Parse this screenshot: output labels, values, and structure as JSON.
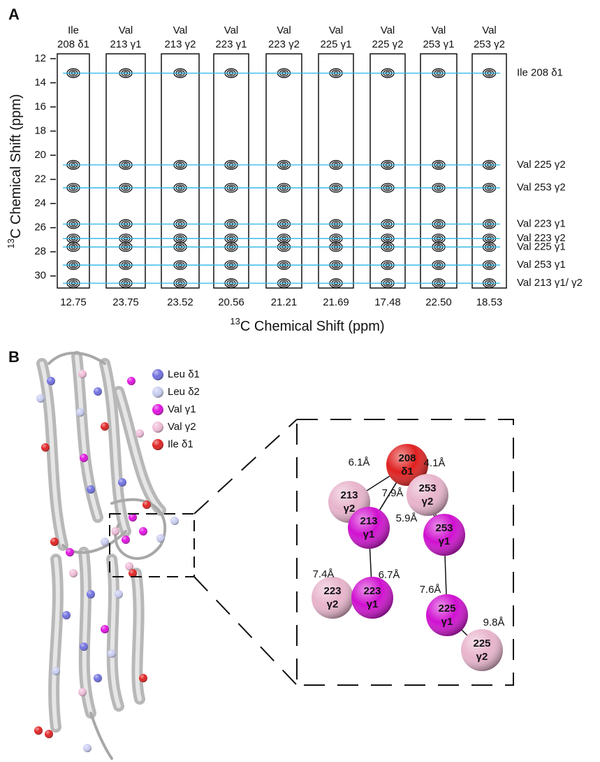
{
  "panel_a": {
    "label": "A",
    "y_axis": {
      "label_sup": "13",
      "label": "C Chemical Shift (ppm)",
      "lim": [
        11.6,
        31.0
      ],
      "ticks": [
        12,
        14,
        16,
        18,
        20,
        22,
        24,
        26,
        28,
        30
      ]
    },
    "x_axis": {
      "label_sup": "13",
      "label": "C Chemical Shift (ppm)"
    },
    "strips": [
      {
        "residue": "Ile",
        "atom": "208 δ1",
        "shift": "12.75"
      },
      {
        "residue": "Val",
        "atom": "213 γ1",
        "shift": "23.75"
      },
      {
        "residue": "Val",
        "atom": "213 γ2",
        "shift": "23.52"
      },
      {
        "residue": "Val",
        "atom": "223 γ1",
        "shift": "20.56"
      },
      {
        "residue": "Val",
        "atom": "223 γ2",
        "shift": "21.21"
      },
      {
        "residue": "Val",
        "atom": "225 γ1",
        "shift": "21.69"
      },
      {
        "residue": "Val",
        "atom": "225 γ2",
        "shift": "17.48"
      },
      {
        "residue": "Val",
        "atom": "253 γ1",
        "shift": "22.50"
      },
      {
        "residue": "Val",
        "atom": "253 γ2",
        "shift": "18.53"
      }
    ],
    "assignments": [
      {
        "label": "Ile 208 δ1",
        "ppm": 13.2
      },
      {
        "label": "Val 225 γ2",
        "ppm": 20.8
      },
      {
        "label": "Val 253 γ2",
        "ppm": 22.7
      },
      {
        "label": "Val 223 γ1",
        "ppm": 25.7
      },
      {
        "label": "Val 223 γ2",
        "ppm": 26.9
      },
      {
        "label": "Val 225 γ1",
        "ppm": 27.6
      },
      {
        "label": "Val 253 γ1",
        "ppm": 29.1
      },
      {
        "label": "Val 213 γ1/ γ2",
        "ppm": 30.6
      }
    ]
  },
  "panel_b": {
    "label": "B",
    "legend": [
      {
        "label": "Leu δ1",
        "color": "#6f6fe0"
      },
      {
        "label": "Leu δ2",
        "color": "#c8ccf0"
      },
      {
        "label": "Val γ1",
        "color": "#e010e0"
      },
      {
        "label": "Val γ2",
        "color": "#f0bcd8"
      },
      {
        "label": "Ile δ1",
        "color": "#e02020"
      }
    ],
    "spheres": [
      {
        "number": "208",
        "atom": "δ1",
        "color": "#e02020"
      },
      {
        "number": "253",
        "atom": "γ2",
        "color": "#e8b4cc"
      },
      {
        "number": "213",
        "atom": "γ2",
        "color": "#e8b4cc"
      },
      {
        "number": "213",
        "atom": "γ1",
        "color": "#d010d0"
      },
      {
        "number": "253",
        "atom": "γ1",
        "color": "#d010d0"
      },
      {
        "number": "223",
        "atom": "γ2",
        "color": "#e8b4cc"
      },
      {
        "number": "223",
        "atom": "γ1",
        "color": "#d010d0"
      },
      {
        "number": "225",
        "atom": "γ1",
        "color": "#d010d0"
      },
      {
        "number": "225",
        "atom": "γ2",
        "color": "#e8b4cc"
      }
    ],
    "distances": [
      "6.1Å",
      "4.1Å",
      "7.9Å",
      "5.9Å",
      "7.4Å",
      "6.7Å",
      "7.6Å",
      "9.8Å"
    ]
  }
}
